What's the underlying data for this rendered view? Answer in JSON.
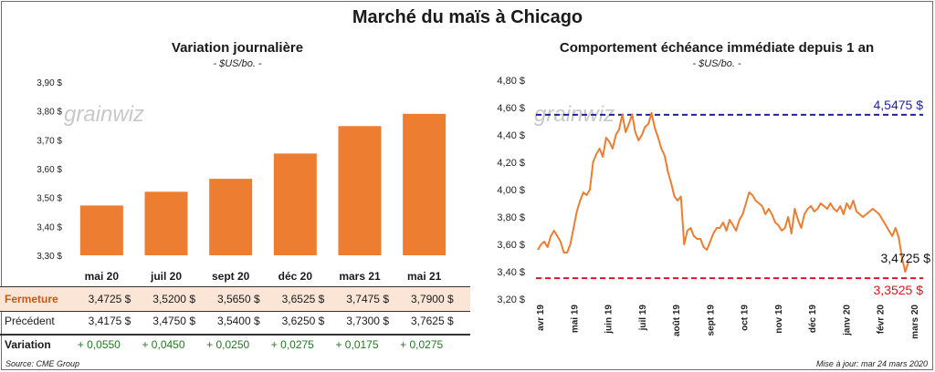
{
  "title": "Marché du maïs à Chicago",
  "left_panel": {
    "title": "Variation  journalière",
    "subtitle": "- $US/bo. -",
    "watermark": "grainwiz"
  },
  "right_panel": {
    "title": "Comportement  échéance immédiate depuis 1 an",
    "subtitle": "- $US/bo. -",
    "watermark": "grainwiz"
  },
  "table": {
    "rows": [
      {
        "label": "Fermeture",
        "values": [
          "3,4725  $",
          "3,5200  $",
          "3,5650  $",
          "3,6525  $",
          "3,7475  $",
          "3,7900  $"
        ]
      },
      {
        "label": "Précédent",
        "values": [
          "3,4175  $",
          "3,4750  $",
          "3,5400  $",
          "3,6250  $",
          "3,7300  $",
          "3,7625  $"
        ]
      },
      {
        "label": "Variation",
        "values": [
          "+ 0,0550",
          "+ 0,0450",
          "+ 0,0250",
          "+ 0,0275",
          "+ 0,0175",
          "+ 0,0275"
        ]
      }
    ]
  },
  "footer": {
    "source": "Source: CME Group",
    "updated": "Mise à jour: mar 24 mars 2020"
  },
  "colors": {
    "bar": "#ed7d31",
    "line": "#ed7d31",
    "high": "#1f1fa8",
    "low": "#e0141e",
    "fermeture_bg": "#fbe5d6",
    "variation_text": "#1e7a1e"
  },
  "chart_data": [
    {
      "type": "bar",
      "categories": [
        "mai 20",
        "juil 20",
        "sept 20",
        "déc 20",
        "mars 21",
        "mai 21"
      ],
      "values": [
        3.4725,
        3.52,
        3.565,
        3.6525,
        3.7475,
        3.79
      ],
      "ylim": [
        3.3,
        3.9
      ],
      "yticks": [
        3.3,
        3.4,
        3.5,
        3.6,
        3.7,
        3.8,
        3.9
      ],
      "ytick_labels": [
        "3,30 $",
        "3,40 $",
        "3,50 $",
        "3,60 $",
        "3,70 $",
        "3,80 $",
        "3,90 $"
      ],
      "grid": false
    },
    {
      "type": "line",
      "x_labels": [
        "avr 19",
        "mai 19",
        "juin 19",
        "juil 19",
        "août 19",
        "sept 19",
        "oct 19",
        "nov 19",
        "déc 19",
        "janv 20",
        "févr 20",
        "mars 20"
      ],
      "ylim": [
        3.2,
        4.8
      ],
      "yticks": [
        3.2,
        3.4,
        3.6,
        3.8,
        4.0,
        4.2,
        4.4,
        4.6,
        4.8
      ],
      "ytick_labels": [
        "3,20 $",
        "3,40 $",
        "3,60 $",
        "3,80 $",
        "4,00 $",
        "4,20 $",
        "4,40 $",
        "4,60 $",
        "4,80 $"
      ],
      "series": [
        {
          "values": [
            3.56,
            3.6,
            3.62,
            3.58,
            3.66,
            3.7,
            3.66,
            3.62,
            3.54,
            3.54,
            3.6,
            3.72,
            3.84,
            3.92,
            3.98,
            3.96,
            4.0,
            4.2,
            4.26,
            4.3,
            4.24,
            4.38,
            4.35,
            4.3,
            4.4,
            4.44,
            4.55,
            4.42,
            4.48,
            4.55,
            4.42,
            4.36,
            4.4,
            4.46,
            4.48,
            4.56,
            4.45,
            4.38,
            4.3,
            4.25,
            4.13,
            4.05,
            3.95,
            3.92,
            3.95,
            3.6,
            3.7,
            3.72,
            3.66,
            3.64,
            3.64,
            3.58,
            3.56,
            3.62,
            3.68,
            3.72,
            3.72,
            3.76,
            3.7,
            3.78,
            3.74,
            3.7,
            3.78,
            3.82,
            3.9,
            3.98,
            3.96,
            3.92,
            3.9,
            3.88,
            3.82,
            3.86,
            3.82,
            3.76,
            3.74,
            3.7,
            3.72,
            3.8,
            3.68,
            3.86,
            3.78,
            3.72,
            3.82,
            3.86,
            3.88,
            3.84,
            3.86,
            3.9,
            3.88,
            3.86,
            3.9,
            3.86,
            3.84,
            3.88,
            3.82,
            3.9,
            3.86,
            3.92,
            3.84,
            3.82,
            3.8,
            3.82,
            3.84,
            3.86,
            3.84,
            3.82,
            3.78,
            3.74,
            3.7,
            3.66,
            3.72,
            3.65,
            3.5,
            3.4,
            3.4725
          ]
        }
      ],
      "reference_lines": [
        {
          "value": 4.5475,
          "label": "4,5475 $",
          "style": "dashed",
          "color": "#1f1fa8"
        },
        {
          "value": 3.3525,
          "label": "3,3525 $",
          "style": "dashed",
          "color": "#e0141e"
        }
      ],
      "last_label": "3,4725 $",
      "grid": false
    }
  ]
}
